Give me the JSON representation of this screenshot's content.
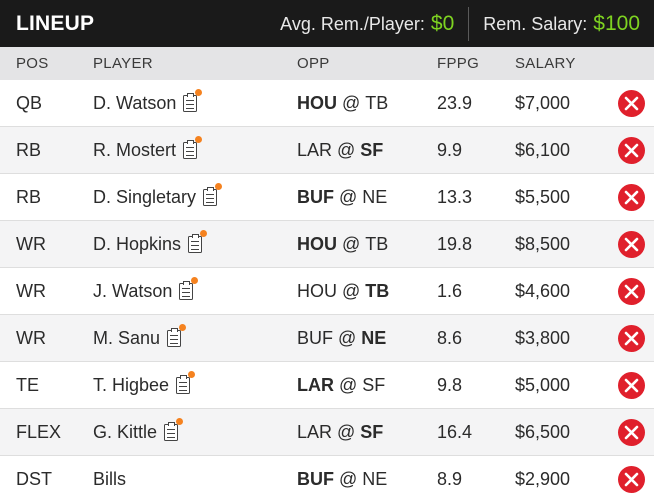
{
  "header": {
    "title": "LINEUP",
    "avg_label": "Avg. Rem./Player:",
    "avg_value": "$0",
    "rem_label": "Rem. Salary:",
    "rem_value": "$100"
  },
  "columns": {
    "pos": "POS",
    "player": "PLAYER",
    "opp": "OPP",
    "fppg": "FPPG",
    "salary": "SALARY"
  },
  "rows": [
    {
      "pos": "QB",
      "player": "D. Watson",
      "has_notes": true,
      "team": "HOU",
      "opp": "TB",
      "bold_side": "team",
      "fppg": "23.9",
      "salary": "$7,000"
    },
    {
      "pos": "RB",
      "player": "R. Mostert",
      "has_notes": true,
      "team": "LAR",
      "opp": "SF",
      "bold_side": "opp",
      "fppg": "9.9",
      "salary": "$6,100"
    },
    {
      "pos": "RB",
      "player": "D. Singletary",
      "has_notes": true,
      "team": "BUF",
      "opp": "NE",
      "bold_side": "team",
      "fppg": "13.3",
      "salary": "$5,500"
    },
    {
      "pos": "WR",
      "player": "D. Hopkins",
      "has_notes": true,
      "team": "HOU",
      "opp": "TB",
      "bold_side": "team",
      "fppg": "19.8",
      "salary": "$8,500"
    },
    {
      "pos": "WR",
      "player": "J. Watson",
      "has_notes": true,
      "team": "HOU",
      "opp": "TB",
      "bold_side": "opp",
      "fppg": "1.6",
      "salary": "$4,600"
    },
    {
      "pos": "WR",
      "player": "M. Sanu",
      "has_notes": true,
      "team": "BUF",
      "opp": "NE",
      "bold_side": "opp",
      "fppg": "8.6",
      "salary": "$3,800"
    },
    {
      "pos": "TE",
      "player": "T. Higbee",
      "has_notes": true,
      "team": "LAR",
      "opp": "SF",
      "bold_side": "team",
      "fppg": "9.8",
      "salary": "$5,000"
    },
    {
      "pos": "FLEX",
      "player": "G. Kittle",
      "has_notes": true,
      "team": "LAR",
      "opp": "SF",
      "bold_side": "opp",
      "fppg": "16.4",
      "salary": "$6,500"
    },
    {
      "pos": "DST",
      "player": "Bills",
      "has_notes": false,
      "team": "BUF",
      "opp": "NE",
      "bold_side": "team",
      "fppg": "8.9",
      "salary": "$2,900"
    }
  ],
  "icons": {
    "notes": "player-notes-icon",
    "remove": "remove-x-icon",
    "alert_dot_color": "#f5821f",
    "remove_color": "#e0202c"
  },
  "colors": {
    "accent_green": "#7ed321",
    "header_bg": "#1a1a1a"
  }
}
